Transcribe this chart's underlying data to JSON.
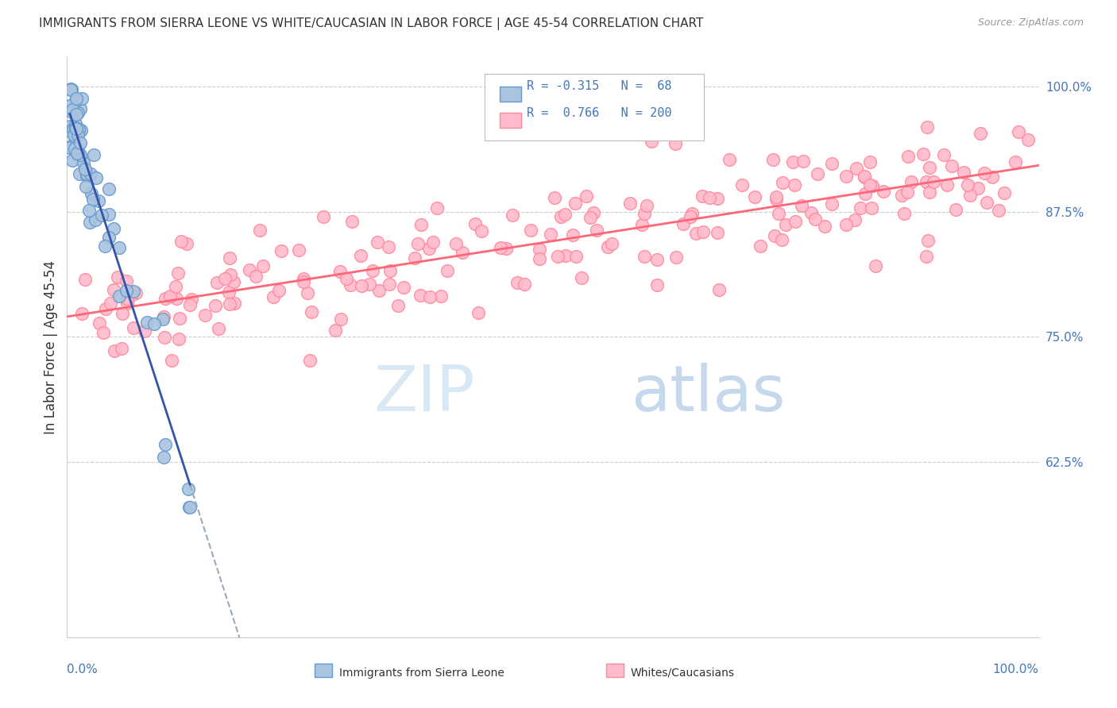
{
  "title": "IMMIGRANTS FROM SIERRA LEONE VS WHITE/CAUCASIAN IN LABOR FORCE | AGE 45-54 CORRELATION CHART",
  "source": "Source: ZipAtlas.com",
  "xlabel_bottom_left": "0.0%",
  "xlabel_bottom_right": "100.0%",
  "ylabel": "In Labor Force | Age 45-54",
  "ylabel_right_yvals": [
    1.0,
    0.875,
    0.75,
    0.625
  ],
  "blue_R": -0.315,
  "blue_N": 68,
  "pink_R": 0.766,
  "pink_N": 200,
  "blue_color": "#6699CC",
  "blue_fill": "#AAC4E0",
  "pink_color": "#FF8899",
  "pink_fill": "#FFBBCC",
  "blue_line_color": "#3355AA",
  "pink_line_color": "#FF6677",
  "blue_dashed_color": "#99AABB",
  "legend_label_blue": "Immigrants from Sierra Leone",
  "legend_label_pink": "Whites/Caucasians",
  "xlim": [
    0.0,
    1.0
  ],
  "ylim": [
    0.45,
    1.03
  ],
  "grid_color": "#CCCCCC",
  "title_color": "#333333",
  "right_axis_color": "#4477BB",
  "bottom_axis_color": "#4477BB"
}
